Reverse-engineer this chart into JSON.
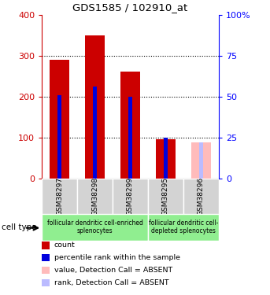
{
  "title": "GDS1585 / 102910_at",
  "samples": [
    "GSM38297",
    "GSM38298",
    "GSM38299",
    "GSM38295",
    "GSM38296"
  ],
  "counts": [
    290,
    350,
    262,
    95,
    0
  ],
  "ranks_pct": [
    51,
    56,
    50,
    25,
    0
  ],
  "absent_flags": [
    false,
    false,
    false,
    false,
    true
  ],
  "absent_value": 88,
  "absent_rank_pct": 22,
  "ylim_left": [
    0,
    400
  ],
  "ylim_right": [
    0,
    100
  ],
  "yticks_left": [
    0,
    100,
    200,
    300,
    400
  ],
  "yticks_right": [
    0,
    25,
    50,
    75,
    100
  ],
  "yticklabels_right": [
    "0",
    "25",
    "50",
    "75",
    "100%"
  ],
  "bar_color_red": "#cc0000",
  "bar_color_blue": "#0000dd",
  "bar_color_pink": "#ffbbbb",
  "bar_color_lightblue": "#bbbbff",
  "cell_type_groups": [
    {
      "label": "follicular dendritic cell-enriched\nsplenocytes",
      "start": 0,
      "end": 3,
      "color": "#90ee90"
    },
    {
      "label": "follicular dendritic cell-\ndepleted splenocytes",
      "start": 3,
      "end": 5,
      "color": "#90ee90"
    }
  ],
  "xlabel_area_color": "#d3d3d3",
  "cell_type_label": "cell type",
  "legend_items": [
    {
      "color": "#cc0000",
      "label": "count"
    },
    {
      "color": "#0000dd",
      "label": "percentile rank within the sample"
    },
    {
      "color": "#ffbbbb",
      "label": "value, Detection Call = ABSENT"
    },
    {
      "color": "#bbbbff",
      "label": "rank, Detection Call = ABSENT"
    }
  ]
}
